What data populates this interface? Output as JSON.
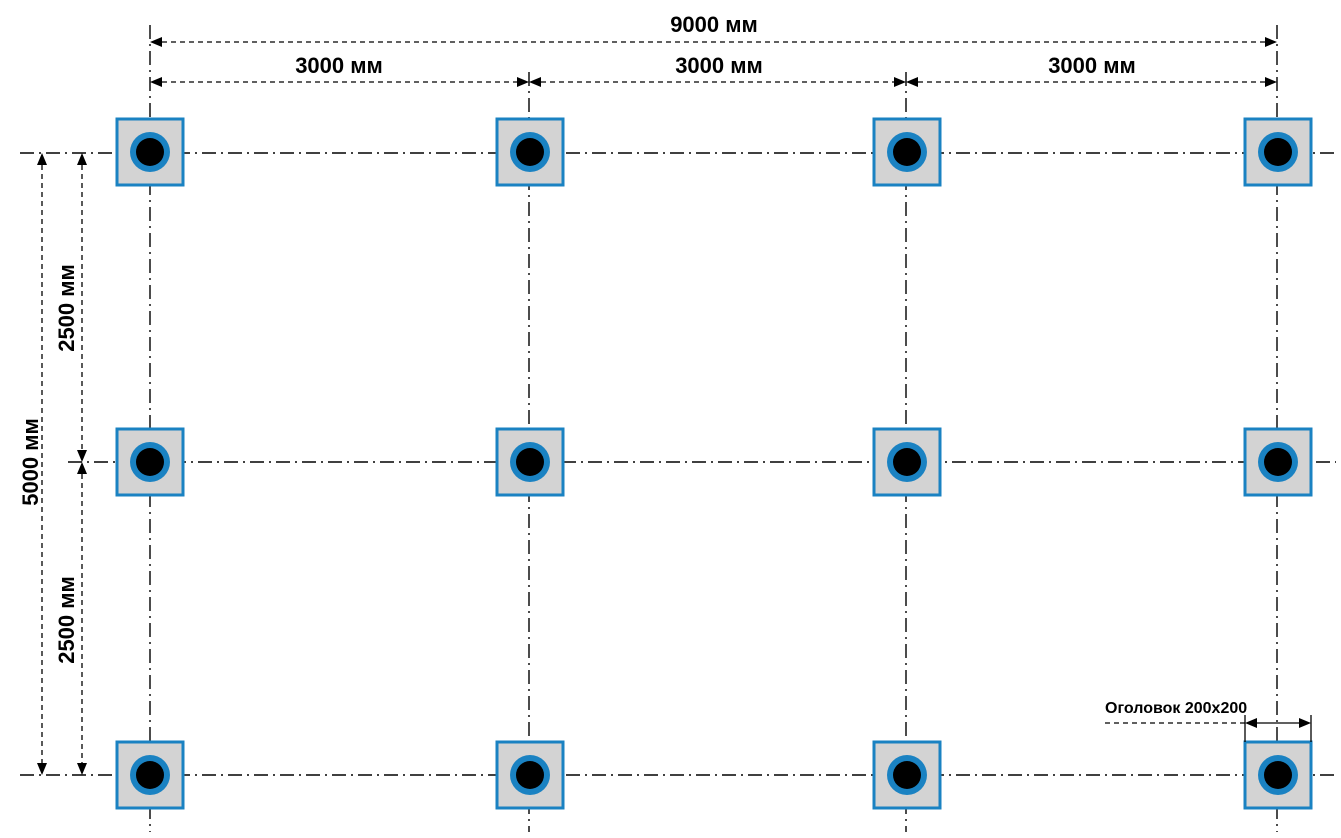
{
  "labels": {
    "total_width": "9000 мм",
    "span_1": "3000 мм",
    "span_2": "3000 мм",
    "span_3": "3000 мм",
    "total_height": "5000 мм",
    "half_height_top": "2500 мм",
    "half_height_bottom": "2500 мм",
    "cap_note": "Оголовок 200х200"
  },
  "colors": {
    "cap_fill": "#d3d3d3",
    "cap_border": "#1a82c2",
    "pile": "#000000"
  },
  "grid": {
    "columns": 4,
    "rows": 3
  }
}
